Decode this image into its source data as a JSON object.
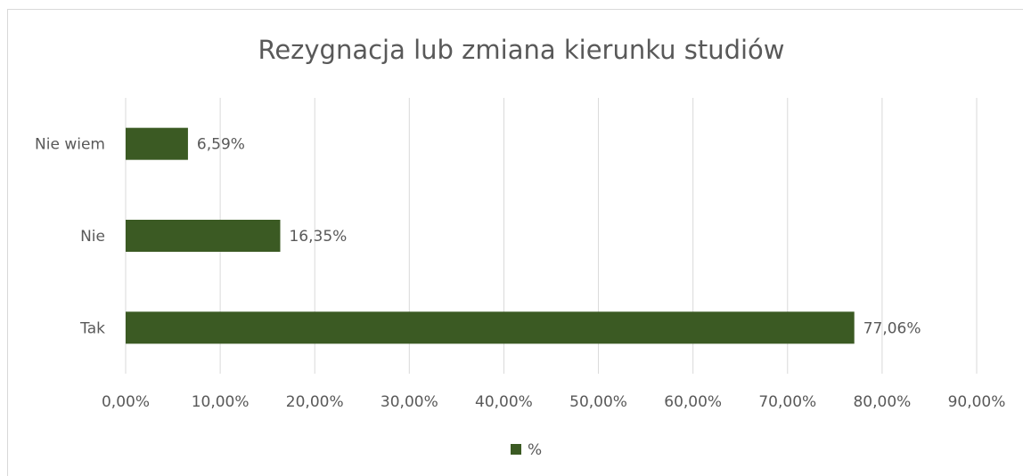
{
  "chart_data": {
    "type": "barh",
    "title": "Rezygnacja lub zmiana kierunku studiów",
    "categories": [
      "Tak",
      "Nie",
      "Nie wiem"
    ],
    "series": [
      {
        "name": "%",
        "color": "#3b5a23",
        "values": [
          77.06,
          16.35,
          6.59
        ],
        "value_labels": [
          "77,06%",
          "16,35%",
          "6,59%"
        ]
      }
    ],
    "xlim": [
      0,
      90
    ],
    "xticks": [
      {
        "value": 0,
        "label": "0,00%"
      },
      {
        "value": 10,
        "label": "10,00%"
      },
      {
        "value": 20,
        "label": "20,00%"
      },
      {
        "value": 30,
        "label": "30,00%"
      },
      {
        "value": 40,
        "label": "40,00%"
      },
      {
        "value": 50,
        "label": "50,00%"
      },
      {
        "value": 60,
        "label": "60,00%"
      },
      {
        "value": 70,
        "label": "70,00%"
      },
      {
        "value": 80,
        "label": "80,00%"
      },
      {
        "value": 90,
        "label": "90,00%"
      }
    ],
    "grid": true,
    "legend": "bottom"
  }
}
